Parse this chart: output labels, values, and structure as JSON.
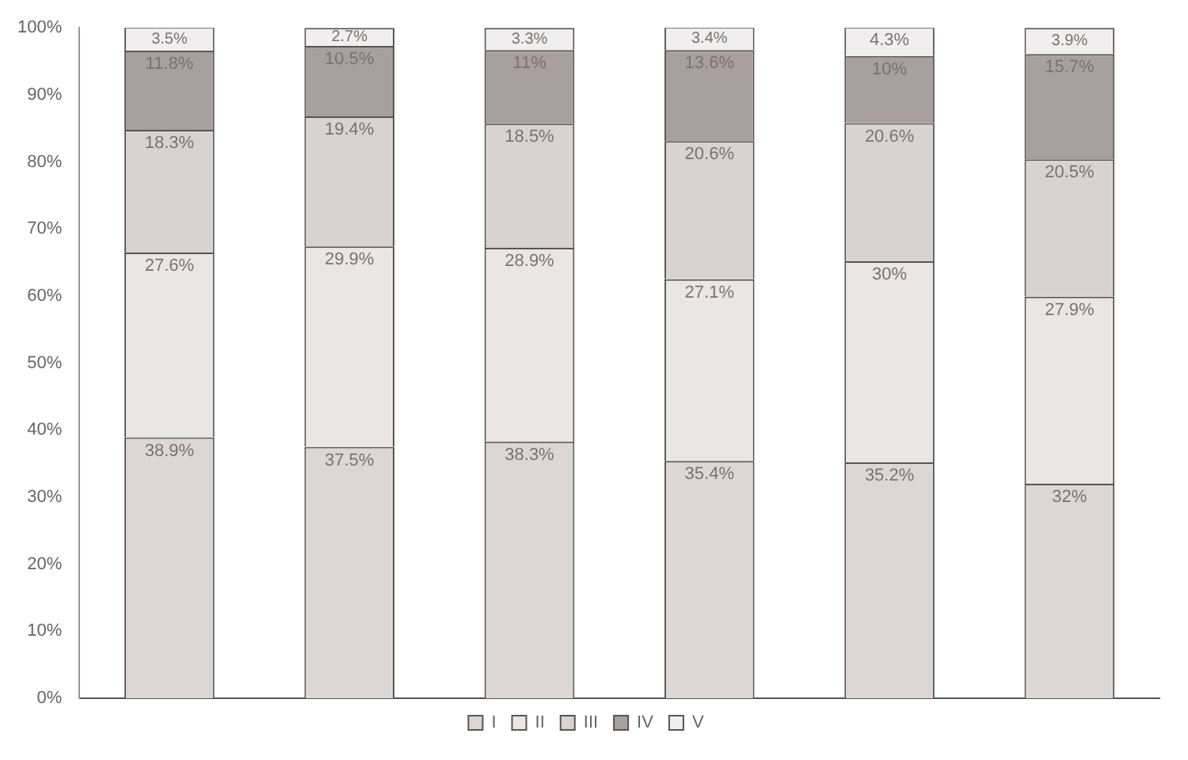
{
  "chart_data": {
    "type": "bar",
    "stacked": true,
    "categories": [
      null,
      null,
      null,
      null,
      null,
      null
    ],
    "series": [
      {
        "name": "I",
        "color": "#ddd6d6",
        "values": [
          38.9,
          37.5,
          38.3,
          35.4,
          35.2,
          32
        ],
        "value_labels": [
          "38.9%",
          "37.5%",
          "38.3%",
          "35.4%",
          "35.2%",
          "32%"
        ]
      },
      {
        "name": "II",
        "color": "#ebe6e6",
        "values": [
          27.6,
          29.9,
          28.9,
          27.1,
          30,
          27.9
        ],
        "value_labels": [
          "27.6%",
          "29.9%",
          "28.9%",
          "27.1%",
          "30%",
          "27.9%"
        ]
      },
      {
        "name": "III",
        "color": "#d9d2d2",
        "values": [
          18.3,
          19.4,
          18.5,
          20.6,
          20.6,
          20.5
        ],
        "value_labels": [
          "18.3%",
          "19.4%",
          "18.5%",
          "20.6%",
          "20.6%",
          "20.5%"
        ]
      },
      {
        "name": "IV",
        "color": "#a8a0a0",
        "values": [
          11.8,
          10.5,
          11,
          13.6,
          10,
          15.7
        ],
        "value_labels": [
          "11.8%",
          "10.5%",
          "11%",
          "13.6%",
          "10%",
          "15.7%"
        ]
      },
      {
        "name": "V",
        "color": "#f0eeee",
        "values": [
          3.5,
          2.7,
          3.3,
          3.4,
          4.3,
          3.9
        ],
        "value_labels": [
          "3.5%",
          "2.7%",
          "3.3%",
          "3.4%",
          "4.3%",
          "3.9%"
        ]
      }
    ],
    "ylim": [
      0,
      100
    ],
    "yticks": [
      {
        "value": 0,
        "label": "0%"
      },
      {
        "value": 10,
        "label": "10%"
      },
      {
        "value": 20,
        "label": "20%"
      },
      {
        "value": 30,
        "label": "30%"
      },
      {
        "value": 40,
        "label": "40%"
      },
      {
        "value": 50,
        "label": "50%"
      },
      {
        "value": 60,
        "label": "60%"
      },
      {
        "value": 70,
        "label": "70%"
      },
      {
        "value": 80,
        "label": "80%"
      },
      {
        "value": 90,
        "label": "90%"
      },
      {
        "value": 100,
        "label": "100%"
      }
    ],
    "tick_labels": "y",
    "grid": false,
    "legend": "bottom"
  }
}
